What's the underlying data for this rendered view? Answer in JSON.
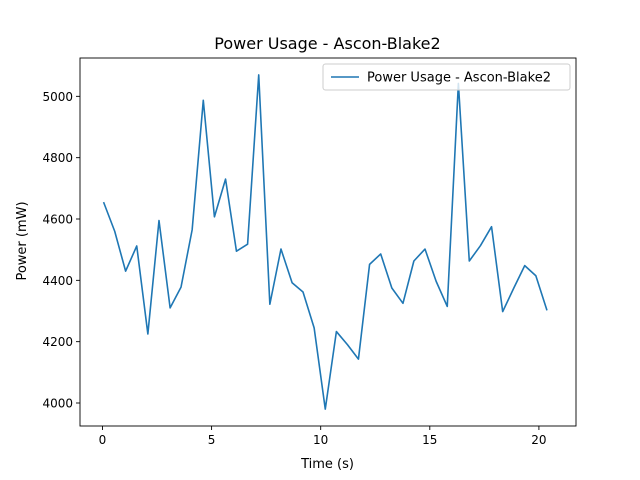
{
  "chart_data": {
    "type": "line",
    "title": "Power Usage - Ascon-Blake2",
    "xlabel": "Time (s)",
    "ylabel": "Power (mW)",
    "xlim": [
      -1.03,
      21.7
    ],
    "ylim": [
      3925,
      5125
    ],
    "xticks": [
      0,
      5,
      10,
      15,
      20
    ],
    "yticks": [
      4000,
      4200,
      4400,
      4600,
      4800,
      5000
    ],
    "grid": false,
    "legend_position": "upper right",
    "series": [
      {
        "name": "Power Usage - Ascon-Blake2",
        "color": "#1f77b4",
        "x": [
          0.05,
          0.56,
          1.06,
          1.57,
          2.08,
          2.59,
          3.1,
          3.6,
          4.11,
          4.62,
          5.13,
          5.64,
          6.14,
          6.65,
          7.16,
          7.67,
          8.18,
          8.69,
          9.19,
          9.7,
          10.21,
          10.72,
          11.23,
          11.73,
          12.24,
          12.75,
          13.26,
          13.77,
          14.27,
          14.78,
          15.29,
          15.8,
          16.31,
          16.81,
          17.32,
          17.83,
          18.34,
          18.85,
          19.35,
          19.86,
          20.37
        ],
        "y": [
          4655,
          4560,
          4430,
          4512,
          4225,
          4595,
          4310,
          4378,
          4565,
          4987,
          4607,
          4730,
          4495,
          4518,
          5070,
          4322,
          4502,
          4392,
          4362,
          4245,
          3980,
          4233,
          4190,
          4143,
          4452,
          4486,
          4375,
          4325,
          4463,
          4502,
          4397,
          4315,
          5042,
          4463,
          4513,
          4575,
          4298,
          4375,
          4448,
          4415,
          4302
        ]
      }
    ]
  }
}
